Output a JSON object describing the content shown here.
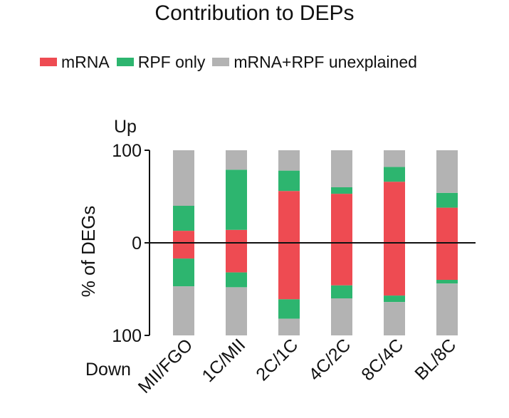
{
  "chart_data": {
    "type": "bar",
    "stacked": "diverging",
    "title": "Contribution to DEPs",
    "ylabel": "% of DEGs",
    "up_label": "Up",
    "down_label": "Down",
    "ylim": [
      -100,
      100
    ],
    "ytick_labels": [
      "100",
      "0",
      "100"
    ],
    "ytick_values": [
      100,
      0,
      -100
    ],
    "categories": [
      "MII/FGO",
      "1C/MII",
      "2C/1C",
      "4C/2C",
      "8C/4C",
      "BL/8C"
    ],
    "series": [
      {
        "name": "mRNA",
        "color": "#ee4b52",
        "up": [
          13,
          14,
          56,
          53,
          66,
          38
        ],
        "down": [
          17,
          32,
          61,
          46,
          57,
          40
        ]
      },
      {
        "name": "RPF only",
        "color": "#2db56f",
        "up": [
          27,
          65,
          22,
          7,
          16,
          16
        ],
        "down": [
          30,
          16,
          21,
          14,
          7,
          4
        ]
      },
      {
        "name": "mRNA+RPF unexplained",
        "color": "#b3b3b3",
        "up": [
          60,
          21,
          22,
          40,
          18,
          46
        ],
        "down": [
          53,
          52,
          18,
          40,
          36,
          56
        ]
      }
    ],
    "legend_position": "top"
  }
}
